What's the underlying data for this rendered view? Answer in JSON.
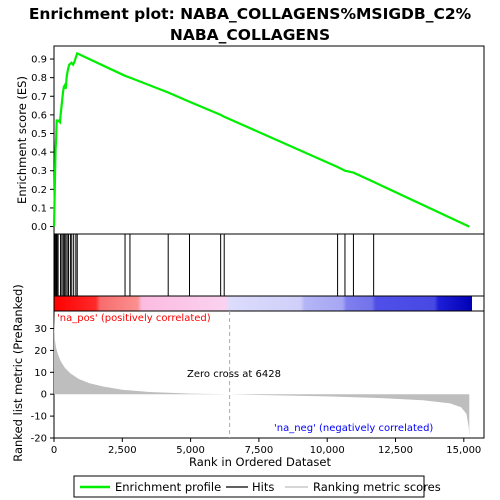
{
  "title_line1": "Enrichment plot: NABA_COLLAGENS%MSIGDB_C2%",
  "title_line2": "NABA_COLLAGENS",
  "colors": {
    "enrichment": "#00ee00",
    "hits": "#000000",
    "ranking": "#bebebe",
    "pos_label": "#ff0000",
    "neg_label": "#0000ff",
    "zero_line": "#aaaaaa"
  },
  "annotations": {
    "pos": "'na_pos' (positively correlated)",
    "neg": "'na_neg' (negatively correlated)",
    "zero_cross": "Zero cross at 6428"
  },
  "legend": {
    "enrichment": "Enrichment profile",
    "hits": "Hits",
    "ranking": "Ranking metric scores"
  },
  "chart_data": [
    {
      "type": "line",
      "ylabel": "Enrichment score (ES)",
      "xlim": [
        0,
        15300
      ],
      "ylim": [
        -0.04,
        0.97
      ],
      "yticks": [
        0.0,
        0.1,
        0.2,
        0.3,
        0.4,
        0.5,
        0.6,
        0.7,
        0.8,
        0.9
      ],
      "ytick_labels": [
        "0.0",
        "0.1",
        "0.2",
        "0.3",
        "0.4",
        "0.5",
        "0.6",
        "0.7",
        "0.8",
        "0.9"
      ],
      "series": [
        {
          "x": [
            0,
            20,
            40,
            60,
            80,
            100,
            150,
            220,
            240,
            280,
            330,
            360,
            400,
            430,
            470,
            520,
            560,
            640,
            700,
            760,
            800,
            850,
            2600,
            2780,
            4180,
            4960,
            6100,
            6230,
            10380,
            10650,
            10960,
            11700,
            15200
          ],
          "y": [
            0.0,
            0.12,
            0.3,
            0.42,
            0.48,
            0.57,
            0.57,
            0.56,
            0.6,
            0.65,
            0.72,
            0.75,
            0.76,
            0.74,
            0.81,
            0.85,
            0.87,
            0.88,
            0.87,
            0.89,
            0.91,
            0.93,
            0.81,
            0.8,
            0.72,
            0.67,
            0.6,
            0.59,
            0.32,
            0.3,
            0.29,
            0.24,
            0.0
          ]
        }
      ]
    },
    {
      "type": "scatter",
      "name": "Hits",
      "x": [
        10,
        30,
        50,
        80,
        110,
        150,
        240,
        290,
        340,
        380,
        430,
        480,
        530,
        600,
        650,
        720,
        800,
        850,
        2600,
        2780,
        4180,
        4960,
        6100,
        6230,
        10380,
        10650,
        10960,
        11700
      ]
    },
    {
      "type": "area",
      "ylabel": "Ranked list metric (PreRanked)",
      "xlabel": "Rank in Ordered Dataset",
      "xlim": [
        0,
        15300
      ],
      "ylim": [
        -20,
        38
      ],
      "xticks": [
        0,
        2500,
        5000,
        7500,
        10000,
        12500,
        15000
      ],
      "xtick_labels": [
        "0",
        "2,500",
        "5,000",
        "7,500",
        "10,000",
        "12,500",
        "15,000"
      ],
      "yticks": [
        -20,
        -10,
        0,
        10,
        20,
        30
      ],
      "ytick_labels": [
        "-20",
        "-10",
        "0",
        "10",
        "20",
        "30"
      ],
      "x": [
        0,
        30,
        80,
        150,
        250,
        400,
        600,
        900,
        1300,
        1800,
        2500,
        3500,
        5000,
        6428,
        8000,
        10000,
        12000,
        13500,
        14500,
        14900,
        15100,
        15180,
        15200
      ],
      "y": [
        36,
        25,
        21,
        18,
        15,
        12,
        9.5,
        7,
        5,
        3.5,
        2,
        1,
        0.3,
        0,
        -0.5,
        -1,
        -1.8,
        -2.8,
        -4.2,
        -6,
        -9,
        -15,
        -19
      ]
    }
  ]
}
